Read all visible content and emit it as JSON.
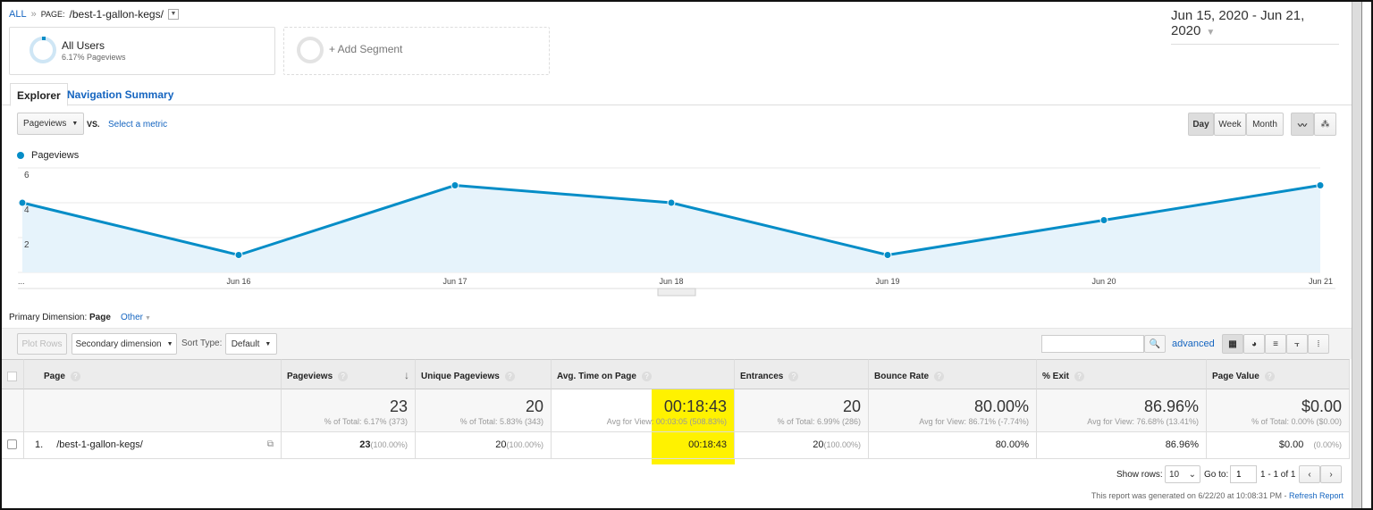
{
  "breadcrumb": {
    "root": "ALL",
    "sep": "»",
    "prefix": "PAGE:",
    "page": "/best-1-gallon-kegs/"
  },
  "date_range": "Jun 15, 2020 - Jun 21, 2020",
  "segments": [
    {
      "name": "All Users",
      "sub": "6.17% Pageviews"
    },
    {
      "name": "+ Add Segment"
    }
  ],
  "tabs": [
    {
      "label": "Explorer",
      "active": true
    },
    {
      "label": "Navigation Summary"
    }
  ],
  "metric": {
    "selected": "Pageviews",
    "vs": "VS.",
    "select_label": "Select a metric"
  },
  "granularity": {
    "options": [
      "Day",
      "Week",
      "Month"
    ],
    "selected": "Day"
  },
  "accent": "#058dc7",
  "chart_data": {
    "type": "area",
    "series": [
      {
        "name": "Pageviews",
        "values": [
          4,
          1,
          5,
          4,
          1,
          3,
          5
        ]
      }
    ],
    "x": [
      "Jun 15",
      "Jun 16",
      "Jun 17",
      "Jun 18",
      "Jun 19",
      "Jun 20",
      "Jun 21"
    ],
    "x_tick_labels": [
      "...",
      "Jun 16",
      "Jun 17",
      "Jun 18",
      "Jun 19",
      "Jun 20",
      "Jun 21"
    ],
    "y_ticks": [
      2,
      4,
      6
    ],
    "ylim": [
      0,
      6
    ],
    "grid": true,
    "legend": "top-left"
  },
  "dimension": {
    "label": "Primary Dimension:",
    "selected": "Page",
    "other": "Other"
  },
  "toolbar": {
    "plot_rows": "Plot Rows",
    "secondary": "Secondary dimension",
    "sort_label": "Sort Type:",
    "sort_value": "Default",
    "search_placeholder": "",
    "advanced": "advanced"
  },
  "table": {
    "headers": [
      "Page",
      "Pageviews",
      "Unique Pageviews",
      "Avg. Time on Page",
      "Entrances",
      "Bounce Rate",
      "% Exit",
      "Page Value"
    ],
    "totals": [
      {
        "v": "23",
        "s": "% of Total: 6.17% (373)"
      },
      {
        "v": "20",
        "s": "% of Total: 5.83% (343)"
      },
      {
        "v": "00:18:43",
        "s": "Avg for View: 00:03:05 (508.83%)"
      },
      {
        "v": "20",
        "s": "% of Total: 6.99% (286)"
      },
      {
        "v": "80.00%",
        "s": "Avg for View: 86.71% (-7.74%)"
      },
      {
        "v": "86.96%",
        "s": "Avg for View: 76.68% (13.41%)"
      },
      {
        "v": "$0.00",
        "s": "% of Total: 0.00% ($0.00)"
      }
    ],
    "rows": [
      {
        "index": "1.",
        "page": "/best-1-gallon-kegs/",
        "pageviews": "23",
        "pageviews_pct": "(100.00%)",
        "unique": "20",
        "unique_pct": "(100.00%)",
        "avg_time": "00:18:43",
        "entrances": "20",
        "entrances_pct": "(100.00%)",
        "bounce": "80.00%",
        "exit": "86.96%",
        "value": "$0.00",
        "value_pct": "(0.00%)"
      }
    ]
  },
  "pagination": {
    "show_rows_label": "Show rows:",
    "rows": "10",
    "goto_label": "Go to:",
    "goto": "1",
    "range": "1 - 1 of 1"
  },
  "footer": {
    "generated": "This report was generated on 6/22/20 at 10:08:31 PM -",
    "refresh": "Refresh Report"
  }
}
